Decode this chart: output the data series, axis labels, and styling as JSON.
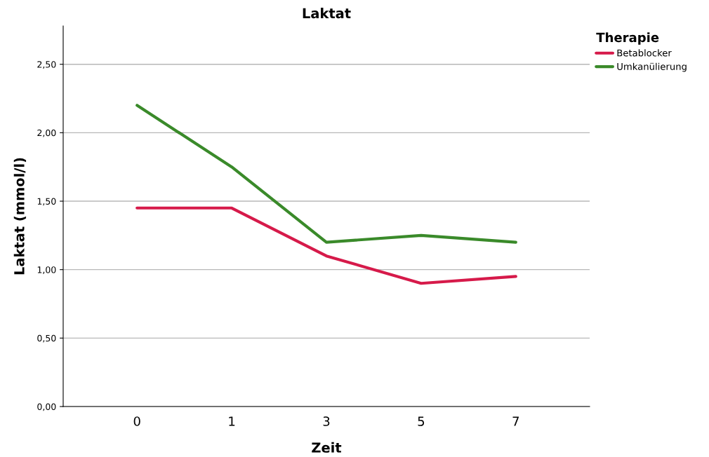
{
  "chart_data": {
    "type": "line",
    "title": "Laktat",
    "xlabel": "Zeit",
    "ylabel": "Laktat (mmol/l)",
    "legend_title": "Therapie",
    "categories": [
      "0",
      "1",
      "3",
      "5",
      "7"
    ],
    "series": [
      {
        "name": "Betablocker",
        "color": "#d61a4a",
        "values": [
          1.45,
          1.45,
          1.1,
          0.9,
          0.95
        ]
      },
      {
        "name": "Umkanülierung",
        "color": "#3a8a2a",
        "values": [
          2.2,
          1.75,
          1.2,
          1.25,
          1.2
        ]
      }
    ],
    "ylim": [
      0,
      2.78
    ],
    "yticks": [
      {
        "value": 0,
        "label": "0,00"
      },
      {
        "value": 0.5,
        "label": "0,50"
      },
      {
        "value": 1,
        "label": "1,00"
      },
      {
        "value": 1.5,
        "label": "1,50"
      },
      {
        "value": 2,
        "label": "2,00"
      },
      {
        "value": 2.5,
        "label": "2,50"
      }
    ],
    "grid": "y",
    "legend": "top right",
    "marker": "none",
    "line_style": "solid"
  }
}
